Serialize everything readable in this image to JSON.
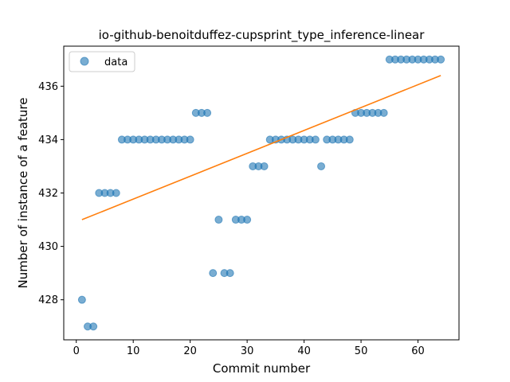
{
  "chart_data": {
    "type": "scatter",
    "title": "io-github-benoitduffez-cupsprint_type_inference-linear",
    "xlabel": "Commit number",
    "ylabel": "Number of instance of a feature",
    "xlim": [
      -2.2,
      67.2
    ],
    "ylim": [
      426.5,
      437.5
    ],
    "xticks": [
      0,
      10,
      20,
      30,
      40,
      50,
      60
    ],
    "yticks": [
      428,
      430,
      432,
      434,
      436
    ],
    "grid": false,
    "legend_position": "upper-left",
    "series": [
      {
        "name": "data",
        "kind": "scatter",
        "color": "#1f77b4",
        "x": [
          1,
          2,
          3,
          4,
          5,
          6,
          7,
          8,
          9,
          10,
          11,
          12,
          13,
          14,
          15,
          16,
          17,
          18,
          19,
          20,
          21,
          22,
          23,
          24,
          25,
          26,
          27,
          28,
          29,
          30,
          31,
          32,
          33,
          34,
          35,
          36,
          37,
          38,
          39,
          40,
          41,
          42,
          43,
          44,
          45,
          46,
          47,
          48,
          49,
          50,
          51,
          52,
          53,
          54,
          55,
          56,
          57,
          58,
          59,
          60,
          61,
          62,
          63,
          64
        ],
        "y": [
          428,
          427,
          427,
          432,
          432,
          432,
          432,
          434,
          434,
          434,
          434,
          434,
          434,
          434,
          434,
          434,
          434,
          434,
          434,
          434,
          435,
          435,
          435,
          429,
          431,
          429,
          429,
          431,
          431,
          431,
          433,
          433,
          433,
          434,
          434,
          434,
          434,
          434,
          434,
          434,
          434,
          434,
          433,
          434,
          434,
          434,
          434,
          434,
          435,
          435,
          435,
          435,
          435,
          435,
          437,
          437,
          437,
          437,
          437,
          437,
          437,
          437,
          437,
          437
        ]
      },
      {
        "kind": "line",
        "color": "#ff7f0e",
        "x": [
          1,
          64
        ],
        "y": [
          431.0,
          436.4
        ]
      }
    ]
  }
}
